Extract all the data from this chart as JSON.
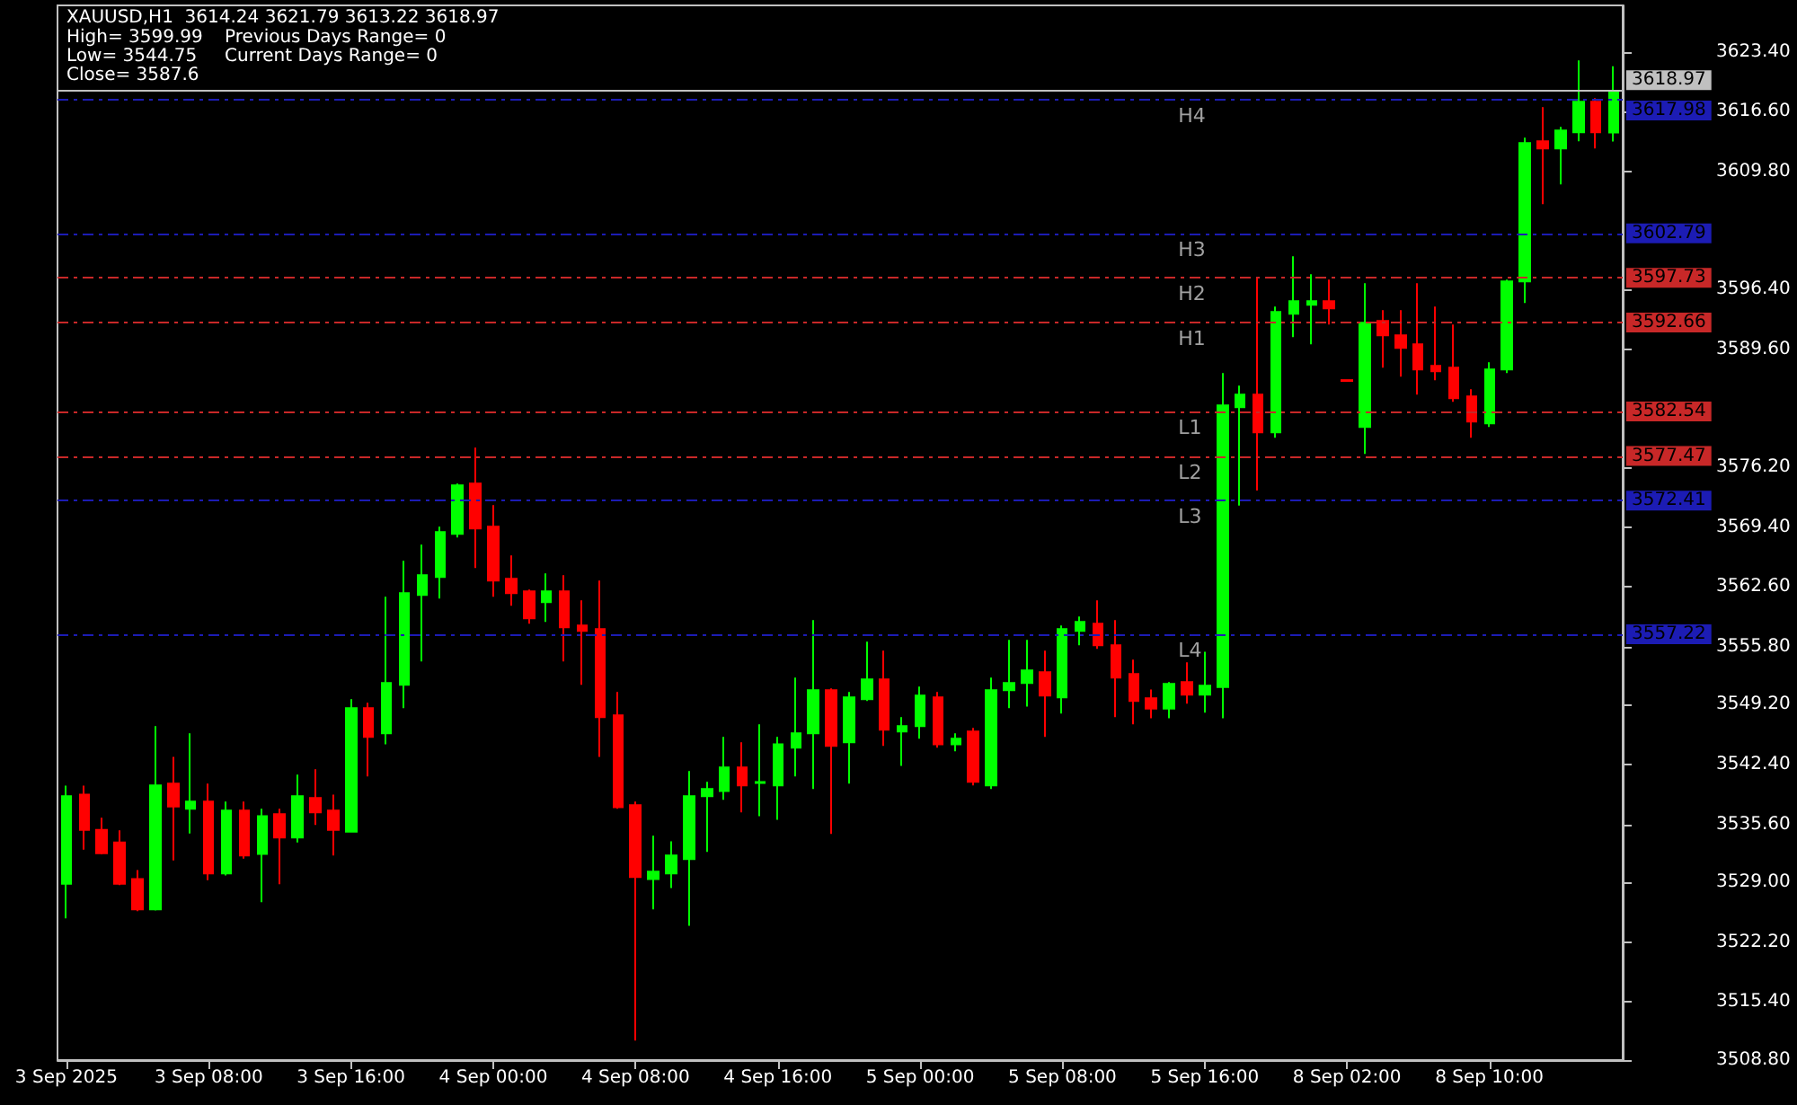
{
  "chart_data": {
    "type": "candlestick",
    "title": "XAUUSD,H1  3614.24 3621.79 3613.22 3618.97",
    "annotations": [
      "High= 3599.99",
      "Previous Days Range= 0",
      "Low= 3544.75",
      "Current Days Range= 0",
      "Close= 3587.6",
      {
        "text": "H4",
        "y": 3617.98
      },
      {
        "text": "H3",
        "y": 3602.79
      },
      {
        "text": "H2",
        "y": 3597.73
      },
      {
        "text": "H1",
        "y": 3592.66
      },
      {
        "text": "L1",
        "y": 3582.54
      },
      {
        "text": "L2",
        "y": 3577.47
      },
      {
        "text": "L3",
        "y": 3572.41
      },
      {
        "text": "L4",
        "y": 3557.22
      }
    ],
    "categories": [
      "3 Sep 2025",
      null,
      null,
      null,
      null,
      null,
      null,
      null,
      "3 Sep 08:00",
      null,
      null,
      null,
      null,
      null,
      null,
      null,
      "3 Sep 16:00",
      null,
      null,
      null,
      null,
      null,
      null,
      null,
      "4 Sep 00:00",
      null,
      null,
      null,
      null,
      null,
      null,
      null,
      "4 Sep 08:00",
      null,
      null,
      null,
      null,
      null,
      null,
      null,
      "4 Sep 16:00",
      null,
      null,
      null,
      null,
      null,
      null,
      null,
      "5 Sep 00:00",
      null,
      null,
      null,
      null,
      null,
      null,
      null,
      "5 Sep 08:00",
      null,
      null,
      null,
      null,
      null,
      null,
      null,
      "5 Sep 16:00",
      null,
      null,
      null,
      null,
      null,
      null,
      null,
      "8 Sep 02:00",
      null,
      null,
      null,
      null,
      null,
      null,
      null,
      "8 Sep 10:00",
      null,
      null,
      null,
      null,
      null,
      null,
      null
    ],
    "ohlc": [
      [
        3528.85,
        3540.0,
        3524.9,
        3538.79
      ],
      [
        3538.99,
        3540.0,
        3532.73,
        3534.98
      ],
      [
        3534.98,
        3536.34,
        3532.2,
        3532.32
      ],
      [
        3533.55,
        3534.91,
        3528.7,
        3528.85
      ],
      [
        3529.39,
        3530.41,
        3525.72,
        3525.92
      ],
      [
        3525.92,
        3546.76,
        3525.8,
        3540.02
      ],
      [
        3540.22,
        3543.28,
        3531.5,
        3537.63
      ],
      [
        3537.36,
        3545.94,
        3534.57,
        3538.18
      ],
      [
        3538.18,
        3540.22,
        3529.26,
        3530.01
      ],
      [
        3530.01,
        3538.18,
        3529.8,
        3537.16
      ],
      [
        3537.16,
        3538.18,
        3531.71,
        3532.05
      ],
      [
        3532.25,
        3537.36,
        3526.74,
        3536.54
      ],
      [
        3536.75,
        3537.36,
        3528.78,
        3534.09
      ],
      [
        3534.09,
        3541.24,
        3533.55,
        3538.79
      ],
      [
        3538.59,
        3541.86,
        3535.52,
        3536.95
      ],
      [
        3537.16,
        3538.99,
        3532.05,
        3534.98
      ],
      [
        3534.77,
        3549.82,
        3534.7,
        3548.8
      ],
      [
        3548.8,
        3549.41,
        3541.04,
        3545.53
      ],
      [
        3545.94,
        3561.47,
        3544.71,
        3551.66
      ],
      [
        3551.46,
        3565.55,
        3548.8,
        3561.88
      ],
      [
        3561.67,
        3567.39,
        3554.11,
        3563.92
      ],
      [
        3563.71,
        3569.43,
        3561.26,
        3568.82
      ],
      [
        3568.62,
        3574.34,
        3568.21,
        3574.13
      ],
      [
        3574.34,
        3578.42,
        3564.74,
        3569.23
      ],
      [
        3569.43,
        3571.89,
        3561.47,
        3563.31
      ],
      [
        3563.51,
        3566.17,
        3560.45,
        3561.88
      ],
      [
        3562.08,
        3562.28,
        3558.4,
        3559.02
      ],
      [
        3560.85,
        3564.12,
        3558.61,
        3562.08
      ],
      [
        3562.08,
        3563.92,
        3554.11,
        3557.99
      ],
      [
        3558.2,
        3561.06,
        3551.46,
        3557.58
      ],
      [
        3557.79,
        3563.31,
        3543.28,
        3547.78
      ],
      [
        3547.98,
        3550.64,
        3537.36,
        3537.56
      ],
      [
        3537.77,
        3538.18,
        3511.01,
        3529.6
      ],
      [
        3529.39,
        3534.3,
        3525.92,
        3530.21
      ],
      [
        3530.01,
        3533.68,
        3528.37,
        3532.05
      ],
      [
        3531.64,
        3541.65,
        3524.08,
        3538.79
      ],
      [
        3538.79,
        3540.43,
        3532.46,
        3539.61
      ],
      [
        3539.4,
        3545.53,
        3538.38,
        3542.06
      ],
      [
        3542.06,
        3544.92,
        3536.95,
        3540.02
      ],
      [
        3540.3,
        3546.96,
        3536.54,
        3540.4
      ],
      [
        3540.02,
        3545.53,
        3536.13,
        3544.71
      ],
      [
        3544.31,
        3552.27,
        3541.04,
        3545.94
      ],
      [
        3545.94,
        3558.81,
        3539.61,
        3550.84
      ],
      [
        3550.84,
        3551.05,
        3534.5,
        3544.51
      ],
      [
        3544.92,
        3550.64,
        3540.22,
        3550.03
      ],
      [
        3549.82,
        3556.36,
        3549.62,
        3552.07
      ],
      [
        3552.07,
        3555.34,
        3544.51,
        3546.35
      ],
      [
        3546.15,
        3547.78,
        3542.26,
        3546.76
      ],
      [
        3546.76,
        3551.25,
        3545.33,
        3550.23
      ],
      [
        3550.03,
        3550.64,
        3544.31,
        3544.71
      ],
      [
        3544.71,
        3545.94,
        3543.9,
        3545.33
      ],
      [
        3546.15,
        3546.55,
        3540.02,
        3540.43
      ],
      [
        3540.02,
        3552.27,
        3539.61,
        3550.84
      ],
      [
        3550.84,
        3556.56,
        3548.8,
        3551.66
      ],
      [
        3551.66,
        3556.56,
        3549.0,
        3553.09
      ],
      [
        3552.89,
        3555.34,
        3545.53,
        3550.23
      ],
      [
        3550.03,
        3558.2,
        3548.19,
        3557.79
      ],
      [
        3557.58,
        3559.22,
        3555.95,
        3558.61
      ],
      [
        3558.4,
        3561.06,
        3555.54,
        3555.95
      ],
      [
        3555.95,
        3558.81,
        3547.78,
        3552.27
      ],
      [
        3552.68,
        3554.32,
        3546.96,
        3549.62
      ],
      [
        3549.92,
        3550.94,
        3547.67,
        3548.76
      ],
      [
        3548.76,
        3551.76,
        3547.67,
        3551.56
      ],
      [
        3551.76,
        3554.01,
        3549.31,
        3550.33
      ],
      [
        3550.33,
        3555.23,
        3548.29,
        3551.35
      ],
      [
        3551.22,
        3586.9,
        3547.67,
        3583.22
      ],
      [
        3583.02,
        3585.47,
        3571.85,
        3584.45
      ],
      [
        3584.45,
        3597.86,
        3573.55,
        3580.16
      ],
      [
        3580.16,
        3594.46,
        3579.54,
        3593.84
      ],
      [
        3593.64,
        3600.18,
        3590.98,
        3595.07
      ],
      [
        3594.66,
        3598.13,
        3590.17,
        3595.07
      ],
      [
        3595.07,
        3597.52,
        3592.41,
        3594.25
      ],
      [
        3586.1,
        3586.1,
        3586.0,
        3586.0
      ],
      [
        3580.77,
        3597.11,
        3577.71,
        3592.62
      ],
      [
        3592.82,
        3594.05,
        3587.51,
        3591.19
      ],
      [
        3591.19,
        3594.05,
        3586.49,
        3589.76
      ],
      [
        3590.17,
        3597.11,
        3584.45,
        3587.31
      ],
      [
        3587.72,
        3594.46,
        3586.08,
        3587.1
      ],
      [
        3587.51,
        3592.41,
        3583.63,
        3584.04
      ],
      [
        3584.24,
        3585.06,
        3579.54,
        3581.38
      ],
      [
        3581.18,
        3588.12,
        3580.77,
        3587.31
      ],
      [
        3587.31,
        3597.52,
        3586.9,
        3597.32
      ],
      [
        3597.32,
        3613.66,
        3594.87,
        3613.05
      ],
      [
        3613.25,
        3617.13,
        3606.1,
        3612.43
      ],
      [
        3612.43,
        3614.89,
        3608.35,
        3614.48
      ],
      [
        3614.27,
        3622.44,
        3613.25,
        3617.75
      ],
      [
        3617.75,
        3618.15,
        3612.43,
        3614.27
      ],
      [
        3614.24,
        3621.79,
        3613.22,
        3618.97
      ]
    ],
    "colors": [
      "#00ff00",
      "#ff0000",
      "#ff0000",
      "#ff0000",
      "#ff0000",
      "#00ff00",
      "#ff0000",
      "#00ff00",
      "#ff0000",
      "#00ff00",
      "#ff0000",
      "#00ff00",
      "#ff0000",
      "#00ff00",
      "#ff0000",
      "#ff0000",
      "#00ff00",
      "#ff0000",
      "#00ff00",
      "#00ff00",
      "#00ff00",
      "#00ff00",
      "#00ff00",
      "#ff0000",
      "#ff0000",
      "#ff0000",
      "#ff0000",
      "#00ff00",
      "#ff0000",
      "#ff0000",
      "#ff0000",
      "#ff0000",
      "#ff0000",
      "#00ff00",
      "#00ff00",
      "#00ff00",
      "#00ff00",
      "#00ff00",
      "#ff0000",
      "#00ff00",
      "#00ff00",
      "#00ff00",
      "#00ff00",
      "#ff0000",
      "#00ff00",
      "#00ff00",
      "#ff0000",
      "#00ff00",
      "#00ff00",
      "#ff0000",
      "#00ff00",
      "#ff0000",
      "#00ff00",
      "#00ff00",
      "#00ff00",
      "#ff0000",
      "#00ff00",
      "#00ff00",
      "#ff0000",
      "#ff0000",
      "#ff0000",
      "#ff0000",
      "#00ff00",
      "#ff0000",
      "#00ff00",
      "#00ff00",
      "#00ff00",
      "#ff0000",
      "#00ff00",
      "#00ff00",
      "#00ff00",
      "#ff0000",
      "#ff0000",
      "#00ff00",
      "#ff0000",
      "#ff0000",
      "#ff0000",
      "#ff0000",
      "#ff0000",
      "#ff0000",
      "#00ff00",
      "#00ff00",
      "#00ff00",
      "#ff0000",
      "#00ff00",
      "#00ff00",
      "#ff0000",
      "#00ff00"
    ],
    "ylim": [
      3508.8,
      3628.7
    ],
    "yticks": [
      {
        "value": 3623.4,
        "label": "3623.40"
      },
      {
        "value": 3616.6,
        "label": "3616.60"
      },
      {
        "value": 3609.8,
        "label": "3609.80"
      },
      {
        "value": 3596.4,
        "label": "3596.40"
      },
      {
        "value": 3589.6,
        "label": "3589.60"
      },
      {
        "value": 3576.2,
        "label": "3576.20"
      },
      {
        "value": 3569.4,
        "label": "3569.40"
      },
      {
        "value": 3562.6,
        "label": "3562.60"
      },
      {
        "value": 3555.8,
        "label": "3555.80"
      },
      {
        "value": 3549.2,
        "label": "3549.20"
      },
      {
        "value": 3542.4,
        "label": "3542.40"
      },
      {
        "value": 3535.6,
        "label": "3535.60"
      },
      {
        "value": 3529.0,
        "label": "3529.00"
      },
      {
        "value": 3522.2,
        "label": "3522.20"
      },
      {
        "value": 3515.4,
        "label": "3515.40"
      },
      {
        "value": 3508.8,
        "label": "3508.80"
      }
    ],
    "ref_lines": [
      {
        "axis": "y",
        "value": 3618.97,
        "label": "3618.97",
        "color": "#c0c0c0",
        "line_style": "solid"
      },
      {
        "axis": "y",
        "value": 3617.98,
        "label": "3617.98",
        "color": "#1c1cb4",
        "line_style": "dashed"
      },
      {
        "axis": "y",
        "value": 3602.79,
        "label": "3602.79",
        "color": "#1c1cb4",
        "line_style": "dashed"
      },
      {
        "axis": "y",
        "value": 3597.73,
        "label": "3597.73",
        "color": "#c82828",
        "line_style": "dashed"
      },
      {
        "axis": "y",
        "value": 3592.66,
        "label": "3592.66",
        "color": "#c82828",
        "line_style": "dashed"
      },
      {
        "axis": "y",
        "value": 3582.54,
        "label": "3582.54",
        "color": "#c82828",
        "line_style": "dashed"
      },
      {
        "axis": "y",
        "value": 3577.47,
        "label": "3577.47",
        "color": "#c82828",
        "line_style": "dashed"
      },
      {
        "axis": "y",
        "value": 3572.41,
        "label": "3572.41",
        "color": "#1c1cb4",
        "line_style": "dashed"
      },
      {
        "axis": "y",
        "value": 3557.22,
        "label": "3557.22",
        "color": "#1c1cb4",
        "line_style": "dashed"
      }
    ]
  }
}
